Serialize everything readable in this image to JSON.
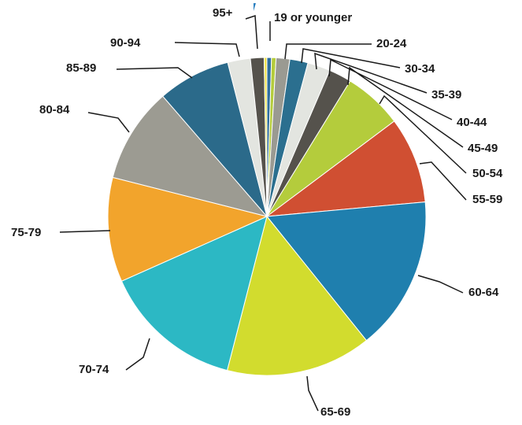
{
  "chart_data": {
    "type": "pie",
    "title": "",
    "categories": [
      "19 or younger",
      "20-24",
      "30-34",
      "35-39",
      "40-44",
      "45-49",
      "50-54",
      "55-59",
      "60-64",
      "65-69",
      "70-74",
      "75-79",
      "80-84",
      "85-89",
      "90-94",
      "95+"
    ],
    "values": [
      0.5,
      1.5,
      2,
      2.5,
      2.5,
      6.5,
      9.5,
      17,
      16,
      15.5,
      11.5,
      10.5,
      8,
      2.5,
      1.5,
      0.3
    ],
    "colors": [
      "#2f6f9e",
      "#9a9a92",
      "#2b6f8f",
      "#e3e5e0",
      "#55524c",
      "#b4cc3c",
      "#d04f32",
      "#1f7fae",
      "#d2dc2e",
      "#2cb8c4",
      "#f2a42c",
      "#9c9b92",
      "#2b6a8a",
      "#e3e5e0",
      "#55524c",
      "#f2e44c"
    ],
    "legend": "none",
    "extra_slices": [
      {
        "index": 0,
        "value": 0.5,
        "color": "#b4cc3c"
      }
    ]
  }
}
